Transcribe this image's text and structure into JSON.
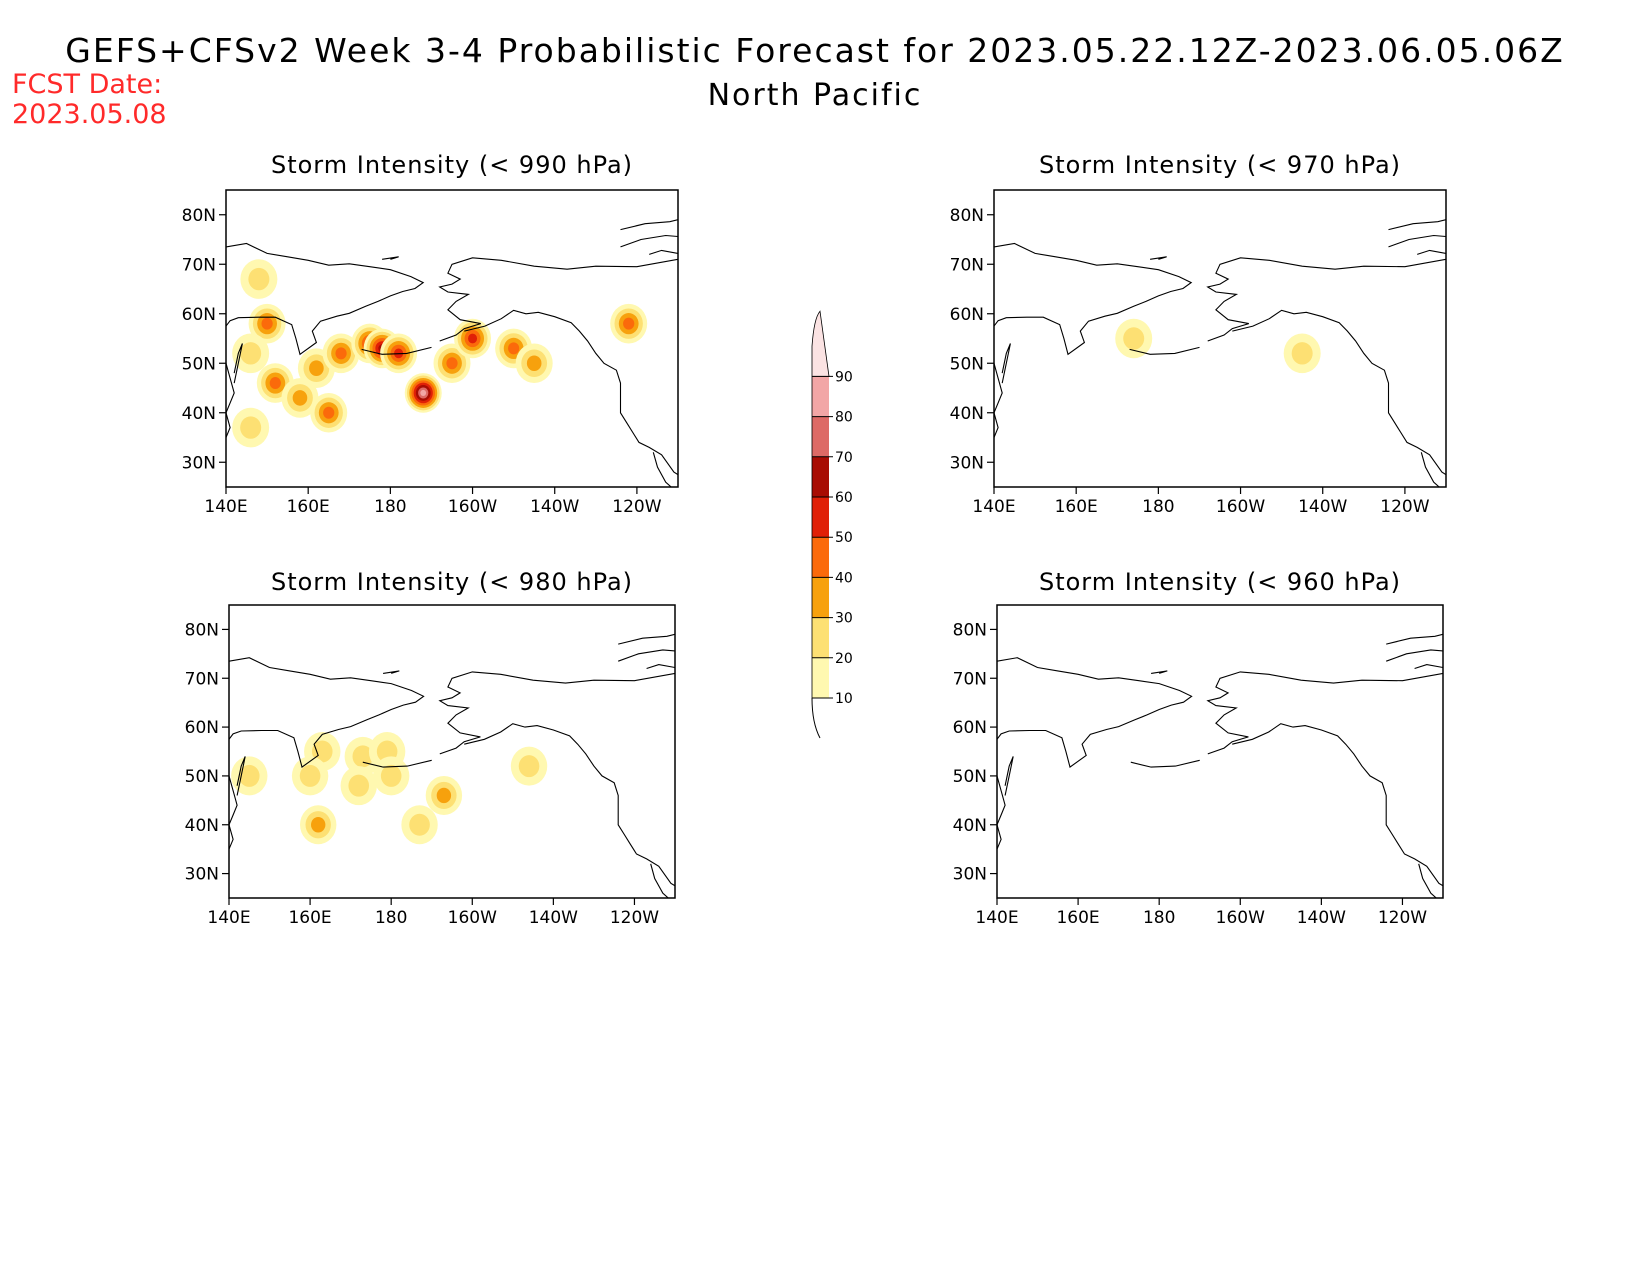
{
  "header": {
    "title": "GEFS+CFSv2 Week 3-4 Probabilistic Forecast for 2023.05.22.12Z-2023.06.05.06Z",
    "subtitle": "North Pacific",
    "fcst_label": "FCST Date:",
    "fcst_date": "2023.05.08"
  },
  "colors": {
    "fcst_text": "#ff2a2a",
    "levels": [
      "#fff8b0",
      "#fde073",
      "#f7a10d",
      "#fb6a0b",
      "#e02007",
      "#a80c03",
      "#dd6a66",
      "#f2a6a6",
      "#fbe3e3"
    ]
  },
  "axes": {
    "lon_ticks": [
      "140E",
      "160E",
      "180",
      "160W",
      "140W",
      "120W"
    ],
    "lat_ticks": [
      "80N",
      "70N",
      "60N",
      "50N",
      "40N",
      "30N"
    ]
  },
  "colorbar": {
    "labels": [
      "10",
      "20",
      "30",
      "40",
      "50",
      "60",
      "70",
      "80",
      "90"
    ]
  },
  "panels": [
    {
      "id": "p990",
      "title": "Storm Intensity (< 990 hPa)",
      "blobs": [
        {
          "lon": 148,
          "lat": 67,
          "level": 1
        },
        {
          "lon": 150,
          "lat": 58,
          "level": 3
        },
        {
          "lon": 146,
          "lat": 52,
          "level": 1
        },
        {
          "lon": 152,
          "lat": 46,
          "level": 3
        },
        {
          "lon": 158,
          "lat": 43,
          "level": 2
        },
        {
          "lon": 162,
          "lat": 49,
          "level": 2
        },
        {
          "lon": 168,
          "lat": 52,
          "level": 3
        },
        {
          "lon": 175,
          "lat": 54,
          "level": 4
        },
        {
          "lon": 178,
          "lat": 53,
          "level": 5
        },
        {
          "lon": 182,
          "lat": 52,
          "level": 4
        },
        {
          "lon": 188,
          "lat": 44,
          "level": 7
        },
        {
          "lon": 195,
          "lat": 50,
          "level": 3
        },
        {
          "lon": 200,
          "lat": 55,
          "level": 4
        },
        {
          "lon": 210,
          "lat": 53,
          "level": 3
        },
        {
          "lon": 215,
          "lat": 50,
          "level": 2
        },
        {
          "lon": 146,
          "lat": 37,
          "level": 1
        },
        {
          "lon": 165,
          "lat": 40,
          "level": 3
        },
        {
          "lon": 238,
          "lat": 58,
          "level": 3
        }
      ]
    },
    {
      "id": "p970",
      "title": "Storm Intensity (< 970 hPa)",
      "blobs": [
        {
          "lon": 174,
          "lat": 55,
          "level": 1
        },
        {
          "lon": 215,
          "lat": 52,
          "level": 1
        }
      ]
    },
    {
      "id": "p980",
      "title": "Storm Intensity (< 980 hPa)",
      "blobs": [
        {
          "lon": 163,
          "lat": 55,
          "level": 1
        },
        {
          "lon": 173,
          "lat": 54,
          "level": 1
        },
        {
          "lon": 179,
          "lat": 55,
          "level": 1
        },
        {
          "lon": 172,
          "lat": 48,
          "level": 1
        },
        {
          "lon": 160,
          "lat": 50,
          "level": 1
        },
        {
          "lon": 180,
          "lat": 50,
          "level": 1
        },
        {
          "lon": 193,
          "lat": 46,
          "level": 2
        },
        {
          "lon": 162,
          "lat": 40,
          "level": 2
        },
        {
          "lon": 187,
          "lat": 40,
          "level": 1
        },
        {
          "lon": 214,
          "lat": 52,
          "level": 1
        },
        {
          "lon": 145,
          "lat": 50,
          "level": 1
        }
      ]
    },
    {
      "id": "p960",
      "title": "Storm Intensity (< 960 hPa)",
      "blobs": []
    }
  ]
}
